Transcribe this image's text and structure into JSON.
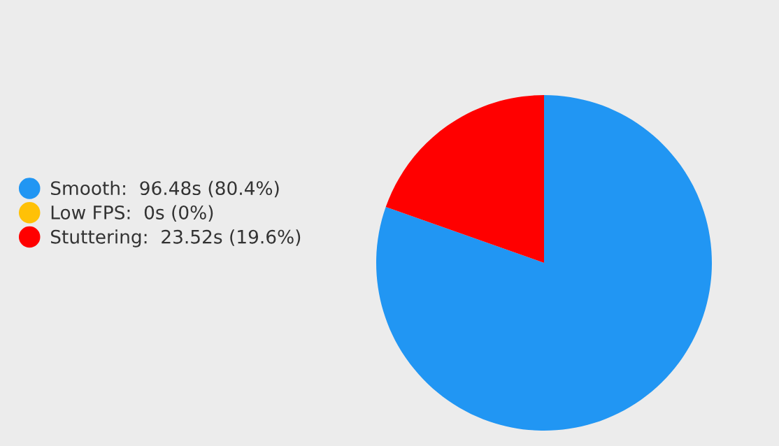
{
  "chart_data": {
    "type": "pie",
    "categories": [
      "Smooth",
      "Low FPS",
      "Stuttering"
    ],
    "values": [
      96.48,
      0,
      23.52
    ],
    "value_labels": [
      "96.48s (80.4%)",
      "0s (0%)",
      "23.52s (19.6%)"
    ],
    "colors": [
      "#2196f3",
      "#ffc107",
      "#ff0000"
    ],
    "legend": "left"
  }
}
